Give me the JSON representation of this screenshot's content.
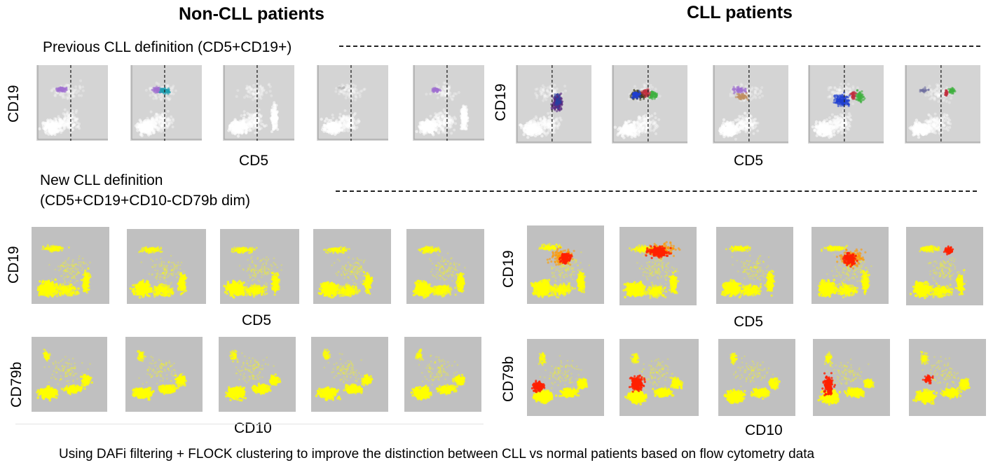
{
  "titles": {
    "non_cll": "Non-CLL patients",
    "cll": "CLL patients"
  },
  "previous_definition": "Previous CLL definition (CD5+CD19+)",
  "new_definition_line1": "New CLL definition",
  "new_definition_line2": "(CD5+CD19+CD10-CD79b dim)",
  "axis_labels": {
    "cd19": "CD19",
    "cd5": "CD5",
    "cd79b": "CD79b",
    "cd10": "CD10"
  },
  "caption": "Using DAFi filtering + FLOCK clustering to improve the distinction between CLL vs normal patients based on flow cytometry data",
  "colors": {
    "plot_bg_gray": "#d4d4d4",
    "plot_bg_new": "#c0c0c0",
    "normal_cells": "#ffff00",
    "cll_cells": "#ff2000",
    "purple_cluster": "#a070d0",
    "teal_cluster": "#20a0b0",
    "blue_cluster": "#2040d0",
    "green_cluster": "#40b040"
  }
}
